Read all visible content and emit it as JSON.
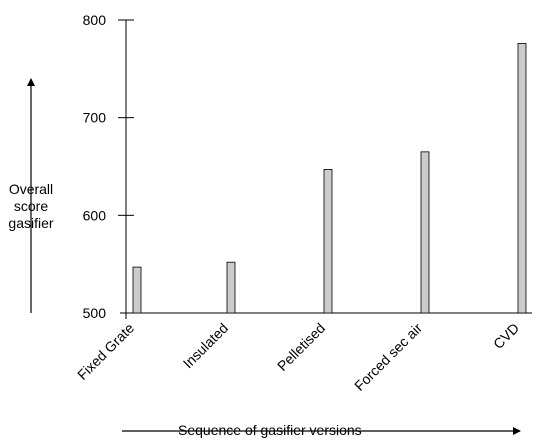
{
  "chart_data": {
    "type": "bar",
    "categories": [
      "Fixed Grate",
      "Insulated",
      "Pelletised",
      "Forced sec air",
      "CVD"
    ],
    "values": [
      547,
      552,
      647,
      665,
      776
    ],
    "ylim": [
      500,
      800
    ],
    "yticks": [
      "500",
      "600",
      "700",
      "800"
    ],
    "ylabel_lines": [
      "Overall",
      "score",
      "gasifier"
    ],
    "xlabel": "Sequence of gasifier versions",
    "bar_color": "#cccccc",
    "grid": false
  }
}
